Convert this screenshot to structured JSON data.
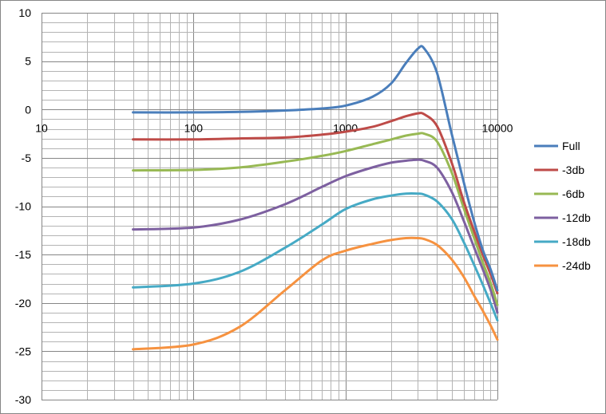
{
  "chart_data": {
    "type": "line",
    "x_scale": "log",
    "xlim": [
      10,
      10000
    ],
    "ylim": [
      -30,
      10
    ],
    "grid": true,
    "legend_position": "right",
    "x_ticks": [
      {
        "value": 10,
        "label": "10"
      },
      {
        "value": 100,
        "label": "100"
      },
      {
        "value": 1000,
        "label": "1000"
      },
      {
        "value": 10000,
        "label": "10000"
      }
    ],
    "y_ticks": [
      {
        "value": 10,
        "label": "10"
      },
      {
        "value": 5,
        "label": "5"
      },
      {
        "value": 0,
        "label": "0"
      },
      {
        "value": -5,
        "label": "-5"
      },
      {
        "value": -10,
        "label": "-10"
      },
      {
        "value": -15,
        "label": "-15"
      },
      {
        "value": -20,
        "label": "-20"
      },
      {
        "value": -25,
        "label": "-25"
      },
      {
        "value": -30,
        "label": "-30"
      }
    ],
    "x": [
      40,
      100,
      200,
      400,
      700,
      1000,
      1500,
      2000,
      2500,
      3000,
      3300,
      4000,
      5000,
      6000,
      7000,
      8000,
      9000,
      10000
    ],
    "series": [
      {
        "name": "Full",
        "color": "#4a7ebb",
        "values": [
          -0.3,
          -0.3,
          -0.25,
          -0.1,
          0.1,
          0.4,
          1.3,
          2.7,
          4.8,
          6.3,
          6.3,
          3.8,
          -2.5,
          -7.5,
          -11.5,
          -14.5,
          -16.5,
          -18.7
        ]
      },
      {
        "name": "-3db",
        "color": "#be4b48",
        "values": [
          -3.1,
          -3.1,
          -3.0,
          -2.9,
          -2.6,
          -2.3,
          -1.8,
          -1.2,
          -0.7,
          -0.4,
          -0.5,
          -1.7,
          -5.5,
          -9.5,
          -12.5,
          -15,
          -17,
          -19
        ]
      },
      {
        "name": "-6db",
        "color": "#98b954",
        "values": [
          -6.3,
          -6.25,
          -6.0,
          -5.4,
          -4.8,
          -4.3,
          -3.6,
          -3.1,
          -2.7,
          -2.5,
          -2.5,
          -3.3,
          -6.5,
          -10.2,
          -13.2,
          -15.8,
          -17.9,
          -20.2
        ]
      },
      {
        "name": "-12db",
        "color": "#7d60a0",
        "values": [
          -12.4,
          -12.2,
          -11.4,
          -9.8,
          -8.0,
          -6.9,
          -6.0,
          -5.5,
          -5.3,
          -5.2,
          -5.3,
          -6.0,
          -8.5,
          -11.5,
          -14.2,
          -16.5,
          -18.6,
          -21.0
        ]
      },
      {
        "name": "-18db",
        "color": "#46aac5",
        "values": [
          -18.4,
          -18.0,
          -16.8,
          -14.3,
          -11.9,
          -10.3,
          -9.3,
          -8.9,
          -8.7,
          -8.7,
          -8.8,
          -9.5,
          -11.3,
          -13.7,
          -16.0,
          -18.1,
          -20.0,
          -21.8
        ]
      },
      {
        "name": "-24db",
        "color": "#f69240",
        "values": [
          -24.8,
          -24.3,
          -22.5,
          -18.7,
          -15.6,
          -14.6,
          -13.9,
          -13.5,
          -13.3,
          -13.3,
          -13.4,
          -14.0,
          -15.5,
          -17.3,
          -19.2,
          -20.8,
          -22.3,
          -23.8
        ]
      }
    ]
  }
}
